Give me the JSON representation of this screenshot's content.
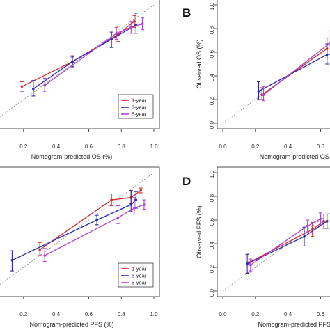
{
  "colors": {
    "one_year": "#d42a2a",
    "three_year": "#2828b4",
    "five_year": "#b040d8",
    "ideal_line": "#888888",
    "frame": "#222222"
  },
  "chart_data": [
    {
      "panel": "A",
      "type": "line",
      "title": "",
      "panel_letter": "",
      "xlabel": "Nomogram-predicted OS (%)",
      "ylabel": "",
      "xlim": [
        0.0,
        1.0
      ],
      "ylim": [
        0.0,
        1.0
      ],
      "x_ticks": [
        "0.2",
        "0.4",
        "0.6",
        "0.8",
        "1.0"
      ],
      "y_ticks": [],
      "legend": "bottom-right",
      "series": [
        {
          "name": "1-year",
          "color_key": "one_year",
          "points": [
            {
              "x": 0.19,
              "y": 0.31,
              "lo": 0.27,
              "hi": 0.35
            },
            {
              "x": 0.5,
              "y": 0.52,
              "lo": 0.48,
              "hi": 0.57
            },
            {
              "x": 0.78,
              "y": 0.75,
              "lo": 0.69,
              "hi": 0.82
            },
            {
              "x": 0.88,
              "y": 0.86,
              "lo": 0.81,
              "hi": 0.91
            }
          ]
        },
        {
          "name": "3-year",
          "color_key": "three_year",
          "points": [
            {
              "x": 0.26,
              "y": 0.29,
              "lo": 0.23,
              "hi": 0.36
            },
            {
              "x": 0.5,
              "y": 0.52,
              "lo": 0.47,
              "hi": 0.56
            },
            {
              "x": 0.74,
              "y": 0.71,
              "lo": 0.64,
              "hi": 0.77
            },
            {
              "x": 0.89,
              "y": 0.83,
              "lo": 0.76,
              "hi": 0.93
            }
          ]
        },
        {
          "name": "5-year",
          "color_key": "five_year",
          "points": [
            {
              "x": 0.33,
              "y": 0.32,
              "lo": 0.27,
              "hi": 0.38
            },
            {
              "x": 0.77,
              "y": 0.76,
              "lo": 0.71,
              "hi": 0.81
            },
            {
              "x": 0.86,
              "y": 0.81,
              "lo": 0.76,
              "hi": 0.86
            },
            {
              "x": 0.93,
              "y": 0.84,
              "lo": 0.79,
              "hi": 0.89
            }
          ]
        }
      ]
    },
    {
      "panel": "B",
      "type": "line",
      "title": "",
      "panel_letter": "B",
      "xlabel": "Nomogram-predicted OS (%)",
      "ylabel": "Observed OS (%)",
      "xlim": [
        0.0,
        1.0
      ],
      "ylim": [
        0.0,
        1.0
      ],
      "x_ticks": [
        "0.0",
        "0.2",
        "0.4",
        "0.6"
      ],
      "y_ticks": [
        "0.0",
        "0.2",
        "0.4",
        "0.6",
        "0.8",
        "1.0"
      ],
      "legend": "none",
      "series": [
        {
          "name": "1-year",
          "color_key": "one_year",
          "points": [
            {
              "x": 0.24,
              "y": 0.24,
              "lo": 0.2,
              "hi": 0.3
            },
            {
              "x": 0.64,
              "y": 0.63,
              "lo": 0.55,
              "hi": 0.72
            }
          ]
        },
        {
          "name": "3-year",
          "color_key": "three_year",
          "points": [
            {
              "x": 0.22,
              "y": 0.27,
              "lo": 0.2,
              "hi": 0.35
            },
            {
              "x": 0.64,
              "y": 0.58,
              "lo": 0.5,
              "hi": 0.67
            }
          ]
        },
        {
          "name": "5-year",
          "color_key": "five_year",
          "points": [
            {
              "x": 0.25,
              "y": 0.24,
              "lo": 0.19,
              "hi": 0.31
            },
            {
              "x": 0.66,
              "y": 0.68,
              "lo": 0.58,
              "hi": 0.78
            }
          ]
        }
      ]
    },
    {
      "panel": "C",
      "type": "line",
      "title": "",
      "panel_letter": "",
      "xlabel": "Nomogram-predicted  PFS (%)",
      "ylabel": "",
      "xlim": [
        0.0,
        1.0
      ],
      "ylim": [
        0.0,
        1.0
      ],
      "x_ticks": [
        "0.2",
        "0.4",
        "0.6",
        "0.8",
        "1.0"
      ],
      "y_ticks": [],
      "legend": "bottom-right",
      "series": [
        {
          "name": "1-year",
          "color_key": "one_year",
          "points": [
            {
              "x": 0.3,
              "y": 0.35,
              "lo": 0.3,
              "hi": 0.41
            },
            {
              "x": 0.74,
              "y": 0.77,
              "lo": 0.72,
              "hi": 0.82
            },
            {
              "x": 0.86,
              "y": 0.79,
              "lo": 0.74,
              "hi": 0.85
            },
            {
              "x": 0.92,
              "y": 0.85,
              "lo": 0.83,
              "hi": 0.87
            }
          ]
        },
        {
          "name": "3-year",
          "color_key": "three_year",
          "points": [
            {
              "x": 0.13,
              "y": 0.26,
              "lo": 0.17,
              "hi": 0.34
            },
            {
              "x": 0.65,
              "y": 0.6,
              "lo": 0.56,
              "hi": 0.64
            },
            {
              "x": 0.86,
              "y": 0.73,
              "lo": 0.67,
              "hi": 0.85
            },
            {
              "x": 0.89,
              "y": 0.77,
              "lo": 0.7,
              "hi": 0.84
            }
          ]
        },
        {
          "name": "5-year",
          "color_key": "five_year",
          "points": [
            {
              "x": 0.33,
              "y": 0.3,
              "lo": 0.25,
              "hi": 0.36
            },
            {
              "x": 0.78,
              "y": 0.62,
              "lo": 0.57,
              "hi": 0.72
            },
            {
              "x": 0.88,
              "y": 0.7,
              "lo": 0.65,
              "hi": 0.79
            },
            {
              "x": 0.94,
              "y": 0.73,
              "lo": 0.69,
              "hi": 0.77
            }
          ]
        }
      ]
    },
    {
      "panel": "D",
      "type": "line",
      "title": "",
      "panel_letter": "D",
      "xlabel": "Nomogram-predicted PFS (%)",
      "ylabel": "Observed PFS (%)",
      "xlim": [
        0.0,
        1.0
      ],
      "ylim": [
        0.0,
        1.0
      ],
      "x_ticks": [
        "0.0",
        "0.2",
        "0.4",
        "0.6"
      ],
      "y_ticks": [
        "0.0",
        "0.2",
        "0.4",
        "0.6",
        "0.8",
        "1.0"
      ],
      "legend": "none",
      "series": [
        {
          "name": "1-year",
          "color_key": "one_year",
          "points": [
            {
              "x": 0.16,
              "y": 0.24,
              "lo": 0.16,
              "hi": 0.32
            },
            {
              "x": 0.55,
              "y": 0.52,
              "lo": 0.46,
              "hi": 0.58
            },
            {
              "x": 0.62,
              "y": 0.59,
              "lo": 0.53,
              "hi": 0.65
            }
          ]
        },
        {
          "name": "3-year",
          "color_key": "three_year",
          "points": [
            {
              "x": 0.15,
              "y": 0.23,
              "lo": 0.15,
              "hi": 0.31
            },
            {
              "x": 0.5,
              "y": 0.46,
              "lo": 0.38,
              "hi": 0.54
            },
            {
              "x": 0.64,
              "y": 0.59,
              "lo": 0.53,
              "hi": 0.65
            }
          ]
        },
        {
          "name": "5-year",
          "color_key": "five_year",
          "points": [
            {
              "x": 0.17,
              "y": 0.22,
              "lo": 0.17,
              "hi": 0.27
            },
            {
              "x": 0.52,
              "y": 0.55,
              "lo": 0.5,
              "hi": 0.6
            },
            {
              "x": 0.6,
              "y": 0.61,
              "lo": 0.56,
              "hi": 0.66
            }
          ]
        }
      ]
    }
  ]
}
